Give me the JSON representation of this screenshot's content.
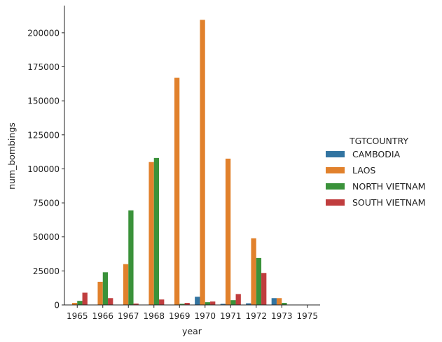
{
  "chart_data": {
    "type": "bar",
    "xlabel": "year",
    "ylabel": "num_bombings",
    "ylim": [
      0,
      220000
    ],
    "yticks": [
      0,
      25000,
      50000,
      75000,
      100000,
      125000,
      150000,
      175000,
      200000
    ],
    "categories": [
      "1965",
      "1966",
      "1967",
      "1968",
      "1969",
      "1970",
      "1971",
      "1972",
      "1973",
      "1975"
    ],
    "legend": {
      "title": "TGTCOUNTRY",
      "placement": "right"
    },
    "grid": false,
    "series": [
      {
        "name": "CAMBODIA",
        "color": "#3274a1",
        "values": [
          0,
          0,
          0,
          0,
          0,
          6000,
          800,
          1200,
          5000,
          0
        ]
      },
      {
        "name": "LAOS",
        "color": "#e1812c",
        "values": [
          1500,
          17000,
          30000,
          105000,
          167000,
          209500,
          107500,
          49000,
          5000,
          0
        ]
      },
      {
        "name": "NORTH VIETNAM",
        "color": "#3a923a",
        "values": [
          3000,
          24000,
          69500,
          108000,
          800,
          2000,
          3500,
          34500,
          1500,
          0
        ]
      },
      {
        "name": "SOUTH VIETNAM",
        "color": "#c03d3e",
        "values": [
          9000,
          5000,
          1000,
          4000,
          1500,
          2500,
          8000,
          23500,
          0,
          0
        ]
      }
    ]
  }
}
